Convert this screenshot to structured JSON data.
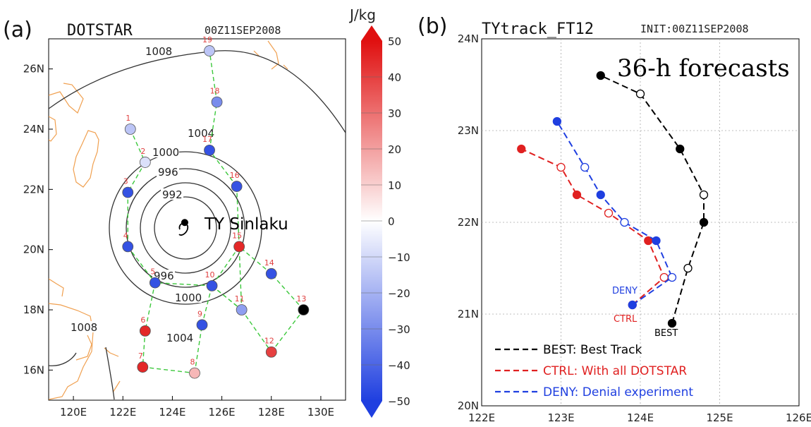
{
  "panel_a": {
    "label": "(a)",
    "title": "DOTSTAR",
    "init": "00Z11SEP2008",
    "xticks": [
      "120E",
      "122E",
      "124E",
      "126E",
      "128E",
      "130E"
    ],
    "yticks": [
      "16N",
      "18N",
      "20N",
      "22N",
      "24N",
      "26N"
    ],
    "colorbar": {
      "unit": "J/kg",
      "ticks": [
        "50",
        "40",
        "30",
        "20",
        "10",
        "0",
        "−10",
        "−20",
        "−30",
        "−40",
        "−50"
      ],
      "colors": {
        "min": "#1f3fe0",
        "mid": "#ffffff",
        "max": "#e01010"
      }
    },
    "typhoon_label": "TY Sinlaku",
    "contour_labels": [
      "1008",
      "1004",
      "1000",
      "996",
      "992",
      "996",
      "1000",
      "1004",
      "1008"
    ]
  },
  "panel_b": {
    "label": "(b)",
    "title": "TYtrack_FT12",
    "init": "INIT:00Z11SEP2008",
    "annotation": "36-h forecasts",
    "xticks": [
      "122E",
      "123E",
      "124E",
      "125E",
      "126E"
    ],
    "yticks": [
      "20N",
      "21N",
      "22N",
      "23N",
      "24N"
    ],
    "track_tags": {
      "best": "BEST",
      "ctrl": "CTRL",
      "deny": "DENY"
    },
    "legend": [
      {
        "text": "BEST: Best Track",
        "color": "#000000"
      },
      {
        "text": "CTRL: With all DOTSTAR",
        "color": "#e02020"
      },
      {
        "text": "DENY: Denial experiment",
        "color": "#1f3fe0"
      }
    ]
  },
  "chart_data": [
    {
      "type": "scatter",
      "title": "DOTSTAR",
      "xlim": [
        119,
        131
      ],
      "ylim": [
        15,
        27
      ],
      "colorbar_range": [
        -50,
        50
      ],
      "colorbar_unit": "J/kg",
      "typhoon_center": {
        "lon": 124.5,
        "lat": 20.9,
        "name": "TY Sinlaku"
      },
      "dropsondes": [
        {
          "id": "1",
          "lon": 122.3,
          "lat": 24.0,
          "value": -15
        },
        {
          "id": "2",
          "lon": 122.9,
          "lat": 22.9,
          "value": -8
        },
        {
          "id": "3",
          "lon": 122.2,
          "lat": 21.9,
          "value": -45
        },
        {
          "id": "4",
          "lon": 122.2,
          "lat": 20.1,
          "value": -45
        },
        {
          "id": "5",
          "lon": 123.3,
          "lat": 18.9,
          "value": -45
        },
        {
          "id": "6",
          "lon": 122.9,
          "lat": 17.3,
          "value": 45
        },
        {
          "id": "7",
          "lon": 122.8,
          "lat": 16.1,
          "value": 45
        },
        {
          "id": "8",
          "lon": 124.9,
          "lat": 15.9,
          "value": 15
        },
        {
          "id": "9",
          "lon": 125.2,
          "lat": 17.5,
          "value": -45
        },
        {
          "id": "10",
          "lon": 125.6,
          "lat": 18.8,
          "value": -45
        },
        {
          "id": "11",
          "lon": 126.8,
          "lat": 18.0,
          "value": -25
        },
        {
          "id": "12",
          "lon": 128.0,
          "lat": 16.6,
          "value": 40
        },
        {
          "id": "13",
          "lon": 129.3,
          "lat": 18.0,
          "value": null
        },
        {
          "id": "14",
          "lon": 128.0,
          "lat": 19.2,
          "value": -45
        },
        {
          "id": "15",
          "lon": 126.7,
          "lat": 20.1,
          "value": 45
        },
        {
          "id": "16",
          "lon": 126.6,
          "lat": 22.1,
          "value": -45
        },
        {
          "id": "17",
          "lon": 125.5,
          "lat": 23.3,
          "value": -45
        },
        {
          "id": "18",
          "lon": 125.8,
          "lat": 24.9,
          "value": -30
        },
        {
          "id": "19",
          "lon": 125.5,
          "lat": 26.6,
          "value": -15
        }
      ]
    },
    {
      "type": "line",
      "title": "TYtrack_FT12",
      "xlim": [
        122,
        126
      ],
      "ylim": [
        20,
        24
      ],
      "series": [
        {
          "name": "BEST: Best Track",
          "color": "#000000",
          "points": [
            [
              124.4,
              20.9
            ],
            [
              124.6,
              21.5
            ],
            [
              124.8,
              22.0
            ],
            [
              124.8,
              22.3
            ],
            [
              124.5,
              22.8
            ],
            [
              124.0,
              23.4
            ],
            [
              123.5,
              23.6
            ]
          ],
          "filled": [
            true,
            false,
            true,
            false,
            true,
            false,
            true
          ]
        },
        {
          "name": "CTRL: With all DOTSTAR",
          "color": "#e02020",
          "points": [
            [
              123.9,
              21.1
            ],
            [
              124.3,
              21.4
            ],
            [
              124.1,
              21.8
            ],
            [
              123.6,
              22.1
            ],
            [
              123.2,
              22.3
            ],
            [
              123.0,
              22.6
            ],
            [
              122.5,
              22.8
            ]
          ],
          "filled": [
            true,
            false,
            true,
            false,
            true,
            false,
            true
          ]
        },
        {
          "name": "DENY: Denial experiment",
          "color": "#1f3fe0",
          "points": [
            [
              123.9,
              21.1
            ],
            [
              124.4,
              21.4
            ],
            [
              124.2,
              21.8
            ],
            [
              123.8,
              22.0
            ],
            [
              123.5,
              22.3
            ],
            [
              123.3,
              22.6
            ],
            [
              122.95,
              23.1
            ]
          ],
          "filled": [
            true,
            false,
            true,
            false,
            true,
            false,
            true
          ]
        }
      ]
    }
  ]
}
